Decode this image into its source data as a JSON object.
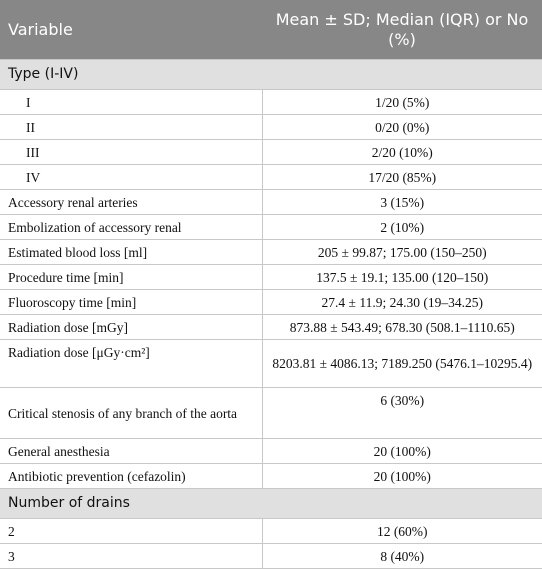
{
  "table": {
    "header": [
      "Variable",
      "Mean ± SD; Median (IQR) or No (%)"
    ],
    "rows": [
      [
        "Type (I-IV)"
      ],
      [
        "I",
        "1/20 (5%)"
      ],
      [
        "II",
        "0/20 (0%)"
      ],
      [
        "III",
        "2/20 (10%)"
      ],
      [
        "IV",
        "17/20 (85%)"
      ],
      [
        "Accessory renal arteries",
        "3 (15%)"
      ],
      [
        "Embolization of accessory renal",
        "2 (10%)"
      ],
      [
        "Estimated blood loss [ml]",
        "205 ± 99.87; 175.00 (150–250)"
      ],
      [
        "Procedure time [min]",
        "137.5 ± 19.1; 135.00 (120–150)"
      ],
      [
        "Fluoroscopy time [min]",
        "27.4 ± 11.9; 24.30 (19–34.25)"
      ],
      [
        "Radiation dose [mGy]",
        "873.88 ± 543.49; 678.30 (508.1–1110.65)"
      ],
      [
        "Radiation dose [μGy·cm²]",
        "8203.81 ± 4086.13; 7189.250 (5476.1–10295.4)"
      ],
      [
        "Critical stenosis of any branch of the aorta",
        "6 (30%)"
      ],
      [
        "General anesthesia",
        "20 (100%)"
      ],
      [
        "Antibiotic prevention (cefazolin)",
        "20 (100%)"
      ],
      [
        "Number of drains"
      ],
      [
        "2",
        "12 (60%)"
      ],
      [
        "3",
        "8 (40%)"
      ]
    ]
  }
}
